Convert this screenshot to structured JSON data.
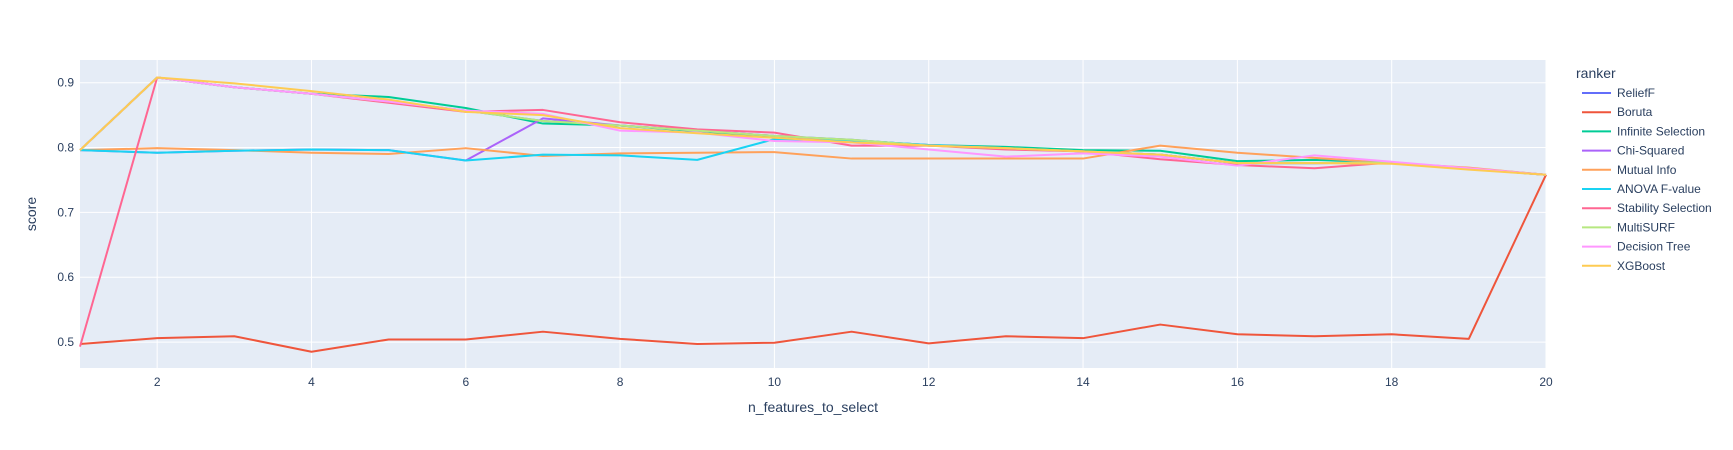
{
  "chart_data": {
    "type": "line",
    "xlabel": "n_features_to_select",
    "ylabel": "score",
    "xlim": [
      1,
      20
    ],
    "ylim": [
      0.46,
      0.935
    ],
    "x_ticks": [
      2,
      4,
      6,
      8,
      10,
      12,
      14,
      16,
      18,
      20
    ],
    "y_ticks": [
      0.5,
      0.6,
      0.7,
      0.8,
      0.9
    ],
    "grid": true,
    "legend": {
      "title": "ranker",
      "position": "right"
    },
    "x": [
      1,
      2,
      3,
      4,
      5,
      6,
      7,
      8,
      9,
      10,
      11,
      12,
      13,
      14,
      15,
      16,
      17,
      18,
      19,
      20
    ],
    "series": [
      {
        "name": "ReliefF",
        "color": "#636efa",
        "values": [
          0.796,
          0.908,
          0.893,
          0.883,
          0.871,
          0.857,
          0.841,
          0.834,
          0.826,
          0.818,
          0.812,
          0.803,
          0.799,
          0.794,
          0.789,
          0.776,
          0.776,
          0.777,
          0.767,
          0.758
        ]
      },
      {
        "name": "Boruta",
        "color": "#EF553B",
        "values": [
          0.497,
          0.506,
          0.509,
          0.485,
          0.504,
          0.504,
          0.516,
          0.505,
          0.497,
          0.499,
          0.516,
          0.498,
          0.509,
          0.506,
          0.527,
          0.512,
          0.509,
          0.512,
          0.505,
          0.758
        ]
      },
      {
        "name": "Infinite Selection",
        "color": "#00cc96",
        "values": [
          0.796,
          0.908,
          0.893,
          0.883,
          0.878,
          0.861,
          0.837,
          0.834,
          0.825,
          0.816,
          0.811,
          0.804,
          0.801,
          0.796,
          0.795,
          0.779,
          0.781,
          0.777,
          0.768,
          0.758
        ]
      },
      {
        "name": "Chi-Squared",
        "color": "#ab63fa",
        "values": [
          0.796,
          0.792,
          0.795,
          0.797,
          0.796,
          0.78,
          0.845,
          0.834,
          0.826,
          0.818,
          0.811,
          0.804,
          0.799,
          0.794,
          0.789,
          0.776,
          0.776,
          0.777,
          0.767,
          0.758
        ]
      },
      {
        "name": "Mutual Info",
        "color": "#FFA15A",
        "values": [
          0.796,
          0.799,
          0.796,
          0.792,
          0.79,
          0.799,
          0.787,
          0.791,
          0.792,
          0.793,
          0.783,
          0.783,
          0.783,
          0.783,
          0.803,
          0.792,
          0.784,
          0.776,
          0.769,
          0.758
        ]
      },
      {
        "name": "ANOVA F-value",
        "color": "#19d3f3",
        "values": [
          0.796,
          0.792,
          0.795,
          0.797,
          0.796,
          0.78,
          0.789,
          0.788,
          0.781,
          0.813,
          0.811,
          0.804,
          0.799,
          0.794,
          0.789,
          0.776,
          0.776,
          0.777,
          0.767,
          0.758
        ]
      },
      {
        "name": "Stability Selection",
        "color": "#FF6692",
        "values": [
          0.493,
          0.908,
          0.893,
          0.883,
          0.869,
          0.855,
          0.858,
          0.839,
          0.828,
          0.823,
          0.803,
          0.803,
          0.797,
          0.794,
          0.782,
          0.773,
          0.768,
          0.777,
          0.767,
          0.758
        ]
      },
      {
        "name": "MultiSURF",
        "color": "#B6E880",
        "values": [
          0.796,
          0.908,
          0.893,
          0.883,
          0.871,
          0.857,
          0.841,
          0.834,
          0.826,
          0.818,
          0.812,
          0.803,
          0.799,
          0.794,
          0.789,
          0.776,
          0.776,
          0.777,
          0.767,
          0.758
        ]
      },
      {
        "name": "Decision Tree",
        "color": "#FF97FF",
        "values": [
          0.796,
          0.908,
          0.893,
          0.883,
          0.871,
          0.857,
          0.852,
          0.826,
          0.823,
          0.81,
          0.808,
          0.797,
          0.786,
          0.791,
          0.786,
          0.772,
          0.788,
          0.778,
          0.768,
          0.758
        ]
      },
      {
        "name": "XGBoost",
        "color": "#FECB52",
        "values": [
          0.796,
          0.908,
          0.899,
          0.887,
          0.874,
          0.855,
          0.85,
          0.83,
          0.822,
          0.815,
          0.808,
          0.803,
          0.799,
          0.794,
          0.789,
          0.776,
          0.776,
          0.775,
          0.766,
          0.758
        ]
      }
    ]
  }
}
